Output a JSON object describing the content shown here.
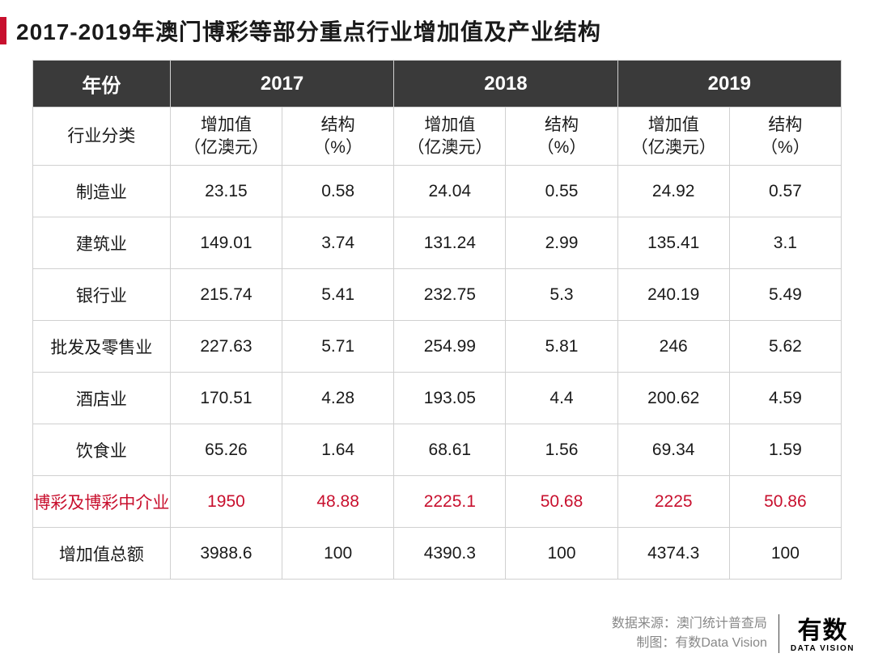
{
  "title": "2017-2019年澳门博彩等部分重点行业增加值及产业结构",
  "colors": {
    "accent": "#c8102e",
    "header_bg": "#3a3a3a",
    "border": "#d0d0d0",
    "text": "#1a1a1a",
    "highlight": "#c8102e",
    "footer_text": "#888888"
  },
  "table": {
    "header": {
      "year_label": "年份",
      "years": [
        "2017",
        "2018",
        "2019"
      ],
      "category_label": "行业分类",
      "value_label": "增加值\n（亿澳元）",
      "structure_label": "结构\n（%）"
    },
    "rows": [
      {
        "label": "制造业",
        "y2017_val": "23.15",
        "y2017_pct": "0.58",
        "y2018_val": "24.04",
        "y2018_pct": "0.55",
        "y2019_val": "24.92",
        "y2019_pct": "0.57",
        "highlight": false
      },
      {
        "label": "建筑业",
        "y2017_val": "149.01",
        "y2017_pct": "3.74",
        "y2018_val": "131.24",
        "y2018_pct": "2.99",
        "y2019_val": "135.41",
        "y2019_pct": "3.1",
        "highlight": false
      },
      {
        "label": "银行业",
        "y2017_val": "215.74",
        "y2017_pct": "5.41",
        "y2018_val": "232.75",
        "y2018_pct": "5.3",
        "y2019_val": "240.19",
        "y2019_pct": "5.49",
        "highlight": false
      },
      {
        "label": "批发及零售业",
        "y2017_val": "227.63",
        "y2017_pct": "5.71",
        "y2018_val": "254.99",
        "y2018_pct": "5.81",
        "y2019_val": "246",
        "y2019_pct": "5.62",
        "highlight": false
      },
      {
        "label": "酒店业",
        "y2017_val": "170.51",
        "y2017_pct": "4.28",
        "y2018_val": "193.05",
        "y2018_pct": "4.4",
        "y2019_val": "200.62",
        "y2019_pct": "4.59",
        "highlight": false
      },
      {
        "label": "饮食业",
        "y2017_val": "65.26",
        "y2017_pct": "1.64",
        "y2018_val": "68.61",
        "y2018_pct": "1.56",
        "y2019_val": "69.34",
        "y2019_pct": "1.59",
        "highlight": false
      },
      {
        "label": "博彩及博彩中介业",
        "y2017_val": "1950",
        "y2017_pct": "48.88",
        "y2018_val": "2225.1",
        "y2018_pct": "50.68",
        "y2019_val": "2225",
        "y2019_pct": "50.86",
        "highlight": true
      },
      {
        "label": "增加值总额",
        "y2017_val": "3988.6",
        "y2017_pct": "100",
        "y2018_val": "4390.3",
        "y2018_pct": "100",
        "y2019_val": "4374.3",
        "y2019_pct": "100",
        "highlight": false
      }
    ]
  },
  "footer": {
    "source_label": "数据来源：澳门统计普查局",
    "credit_label": "制图：有数Data Vision",
    "logo_main": "有数",
    "logo_sub": "DATA VISION"
  }
}
